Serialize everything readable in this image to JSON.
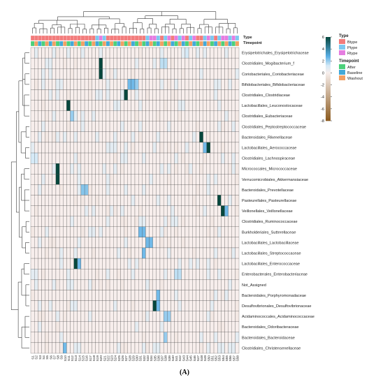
{
  "panel_label": "(A)",
  "chart_data": {
    "type": "heatmap",
    "title": "",
    "xlabel": "",
    "ylabel": "",
    "rows": [
      "Erysipelotrichales_Erysipelotrichaceae",
      "Clostridiales_Mogibacterium_f",
      "Coriobacteriales_Coriobacteriaceae",
      "Bifidobacteriales_Bifidobacteriaceae",
      "Clostridiales_Clostridiaceae",
      "Lactobacillales_Leuconostocaceae",
      "Clostridiales_Eubacteriaceae",
      "Clostridiales_Peptostreptococcaceae",
      "Bacteroidales_Rikenellaceae",
      "Lactobacillales_Aerococcaceae",
      "Clostridiales_Lachnospiraceae",
      "Micrococcales_Micrococcaceae",
      "Verrucomicrobiales_Akkermansiaceae",
      "Bacteroidales_Prevotellaceae",
      "Pasteurellales_Pasteurellaceae",
      "Veillonellales_Veillonellaceae",
      "Clostridiales_Ruminococcaceae",
      "Burkholderiales_Sutterellaceae",
      "Lactobacillales_Lactobacillaceae",
      "Lactobacillales_Streptococcaceae",
      "Lactobacillales_Enterococcaceae",
      "Enterobacterales_Enterobacteriaceae",
      "Not_Assigned",
      "Bacteroidales_Porphyromonadaceae",
      "Desulfovibrionales_Desulfovibrionaceae",
      "Acidaminococcales_Acidaminococcaceae",
      "Bacteroidales_Odoribacteraceae",
      "Bacteroidales_Bacteroidaceae",
      "Clostridiales_Christensenellaceae"
    ],
    "n_columns": 58,
    "annotation_rows": [
      "Type",
      "Timepoint"
    ],
    "column_type": [
      "B",
      "B",
      "B",
      "B",
      "B",
      "B",
      "B",
      "B",
      "B",
      "B",
      "B",
      "B",
      "B",
      "B",
      "B",
      "B",
      "B",
      "B",
      "P",
      "R",
      "P",
      "B",
      "B",
      "B",
      "B",
      "B",
      "B",
      "B",
      "B",
      "B",
      "B",
      "B",
      "P",
      "R",
      "R",
      "P",
      "B",
      "P",
      "R",
      "B",
      "R",
      "P",
      "R",
      "B",
      "P",
      "R",
      "B",
      "B",
      "P",
      "R",
      "P",
      "B",
      "P",
      "R",
      "R",
      "P",
      "R",
      "P"
    ],
    "column_timepoint": [
      "A",
      "W",
      "B",
      "A",
      "W",
      "B",
      "W",
      "A",
      "B",
      "W",
      "A",
      "B",
      "W",
      "A",
      "W",
      "B",
      "A",
      "W",
      "B",
      "A",
      "W",
      "B",
      "W",
      "A",
      "B",
      "W",
      "A",
      "W",
      "B",
      "A",
      "W",
      "A",
      "B",
      "W",
      "A",
      "B",
      "W",
      "A",
      "W",
      "B",
      "A",
      "W",
      "B",
      "A",
      "W",
      "B",
      "A",
      "W",
      "B",
      "W",
      "A",
      "B",
      "W",
      "A",
      "W",
      "B",
      "A",
      "W"
    ],
    "color_scale": {
      "min": -8,
      "max": 6,
      "ticks": [
        6,
        4,
        2,
        0,
        -2,
        -4,
        -6,
        -8
      ]
    },
    "highlights": [
      {
        "row": 0,
        "col": 43,
        "value": 1.2
      },
      {
        "row": 1,
        "col": 36,
        "value": 1.5
      },
      {
        "row": 1,
        "col": 37,
        "value": 1.5
      },
      {
        "row": 1,
        "col": 19,
        "value": 6
      },
      {
        "row": 2,
        "col": 19,
        "value": 6
      },
      {
        "row": 3,
        "col": 27,
        "value": 2.5
      },
      {
        "row": 3,
        "col": 28,
        "value": 2.5
      },
      {
        "row": 3,
        "col": 29,
        "value": 2
      },
      {
        "row": 4,
        "col": 26,
        "value": 6
      },
      {
        "row": 5,
        "col": 10,
        "value": 6
      },
      {
        "row": 6,
        "col": 11,
        "value": 2
      },
      {
        "row": 8,
        "col": 47,
        "value": 6
      },
      {
        "row": 9,
        "col": 48,
        "value": 2.5
      },
      {
        "row": 9,
        "col": 49,
        "value": 6
      },
      {
        "row": 10,
        "col": 0,
        "value": 1.2
      },
      {
        "row": 10,
        "col": 1,
        "value": 1.2
      },
      {
        "row": 11,
        "col": 7,
        "value": 6
      },
      {
        "row": 12,
        "col": 7,
        "value": 6
      },
      {
        "row": 13,
        "col": 14,
        "value": 2.2
      },
      {
        "row": 13,
        "col": 15,
        "value": 2.2
      },
      {
        "row": 14,
        "col": 52,
        "value": 6
      },
      {
        "row": 15,
        "col": 53,
        "value": 6
      },
      {
        "row": 15,
        "col": 54,
        "value": 2.5
      },
      {
        "row": 17,
        "col": 30,
        "value": 2.5
      },
      {
        "row": 17,
        "col": 31,
        "value": 2.5
      },
      {
        "row": 18,
        "col": 32,
        "value": 2.5
      },
      {
        "row": 18,
        "col": 33,
        "value": 2.5
      },
      {
        "row": 19,
        "col": 31,
        "value": 2.5
      },
      {
        "row": 20,
        "col": 12,
        "value": 6
      },
      {
        "row": 20,
        "col": 13,
        "value": 2.5
      },
      {
        "row": 21,
        "col": 40,
        "value": 1.5
      },
      {
        "row": 21,
        "col": 41,
        "value": 1.5
      },
      {
        "row": 23,
        "col": 35,
        "value": 2.5
      },
      {
        "row": 24,
        "col": 34,
        "value": 6
      },
      {
        "row": 24,
        "col": 35,
        "value": 2.5
      },
      {
        "row": 25,
        "col": 37,
        "value": 2
      },
      {
        "row": 25,
        "col": 38,
        "value": 2
      },
      {
        "row": 27,
        "col": 37,
        "value": 2
      },
      {
        "row": 28,
        "col": 9,
        "value": 2.5
      }
    ]
  },
  "legend": {
    "type_title": "Type",
    "type_items": [
      {
        "label": "Btype",
        "color": "#f27c7c"
      },
      {
        "label": "Ptype",
        "color": "#7ec8f0"
      },
      {
        "label": "Rtype",
        "color": "#e57de0"
      }
    ],
    "timepoint_title": "Timepoint",
    "timepoint_items": [
      {
        "label": "After",
        "color": "#4cd07a"
      },
      {
        "label": "Baseline",
        "color": "#43a9d8"
      },
      {
        "label": "Washout",
        "color": "#f2a064"
      }
    ]
  },
  "colors": {
    "cell_neutral": "#f7eeec",
    "low_blue": "#d6eaf7",
    "mid_blue": "#58aee4",
    "high": "#07473d",
    "negative": "#8b5a1e",
    "grid": "#3a3a3a",
    "dendrogram": "#3a3a3a"
  }
}
